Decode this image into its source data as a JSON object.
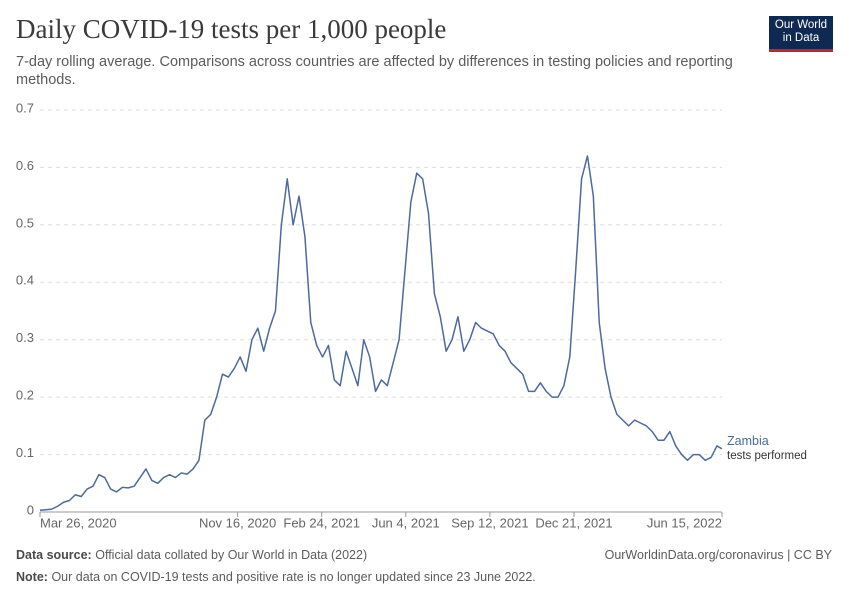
{
  "chart_data": {
    "type": "line",
    "title": "Daily COVID-19 tests per 1,000 people",
    "subtitle": "7-day rolling average. Comparisons across countries are affected by differences in testing policies and reporting methods.",
    "logo": "Our World in Data",
    "source_label": "Data source:",
    "source": "Official data collated by Our World in Data (2022)",
    "credit": "OurWorldinData.org/coronavirus | CC BY",
    "note_label": "Note:",
    "note": "Our data on COVID-19 tests and positive rate is no longer updated since 23 June 2022.",
    "grid": true,
    "xlim": [
      "2020-03-26",
      "2022-06-15"
    ],
    "xticks": [
      {
        "value": "2020-03-26",
        "label": "Mar 26, 2020"
      },
      {
        "value": "2020-11-16",
        "label": "Nov 16, 2020"
      },
      {
        "value": "2021-02-24",
        "label": "Feb 24, 2021"
      },
      {
        "value": "2021-06-04",
        "label": "Jun 4, 2021"
      },
      {
        "value": "2021-09-12",
        "label": "Sep 12, 2021"
      },
      {
        "value": "2021-12-21",
        "label": "Dec 21, 2021"
      },
      {
        "value": "2022-06-15",
        "label": "Jun 15, 2022"
      }
    ],
    "ylim": [
      0,
      0.7
    ],
    "yticks": [
      0,
      0.1,
      0.2,
      0.3,
      0.4,
      0.5,
      0.6,
      0.7
    ],
    "x": [
      "2020-03-26",
      "2020-04-02",
      "2020-04-09",
      "2020-04-16",
      "2020-04-23",
      "2020-04-30",
      "2020-05-07",
      "2020-05-14",
      "2020-05-21",
      "2020-05-28",
      "2020-06-04",
      "2020-06-11",
      "2020-06-18",
      "2020-06-25",
      "2020-07-02",
      "2020-07-09",
      "2020-07-16",
      "2020-07-23",
      "2020-07-30",
      "2020-08-06",
      "2020-08-13",
      "2020-08-20",
      "2020-08-27",
      "2020-09-03",
      "2020-09-10",
      "2020-09-17",
      "2020-09-24",
      "2020-10-01",
      "2020-10-08",
      "2020-10-15",
      "2020-10-22",
      "2020-10-29",
      "2020-11-05",
      "2020-11-12",
      "2020-11-19",
      "2020-11-26",
      "2020-12-03",
      "2020-12-10",
      "2020-12-17",
      "2020-12-24",
      "2020-12-31",
      "2021-01-07",
      "2021-01-14",
      "2021-01-21",
      "2021-01-28",
      "2021-02-04",
      "2021-02-11",
      "2021-02-18",
      "2021-02-25",
      "2021-03-04",
      "2021-03-11",
      "2021-03-18",
      "2021-03-25",
      "2021-04-01",
      "2021-04-08",
      "2021-04-15",
      "2021-04-22",
      "2021-04-29",
      "2021-05-06",
      "2021-05-13",
      "2021-05-20",
      "2021-05-27",
      "2021-06-03",
      "2021-06-10",
      "2021-06-17",
      "2021-06-24",
      "2021-07-01",
      "2021-07-08",
      "2021-07-15",
      "2021-07-22",
      "2021-07-29",
      "2021-08-05",
      "2021-08-12",
      "2021-08-19",
      "2021-08-26",
      "2021-09-02",
      "2021-09-09",
      "2021-09-16",
      "2021-09-23",
      "2021-09-30",
      "2021-10-07",
      "2021-10-14",
      "2021-10-21",
      "2021-10-28",
      "2021-11-04",
      "2021-11-11",
      "2021-11-18",
      "2021-11-25",
      "2021-12-02",
      "2021-12-09",
      "2021-12-16",
      "2021-12-23",
      "2021-12-30",
      "2022-01-06",
      "2022-01-13",
      "2022-01-20",
      "2022-01-27",
      "2022-02-03",
      "2022-02-10",
      "2022-02-17",
      "2022-02-24",
      "2022-03-03",
      "2022-03-10",
      "2022-03-17",
      "2022-03-24",
      "2022-03-31",
      "2022-04-07",
      "2022-04-14",
      "2022-04-21",
      "2022-04-28",
      "2022-05-05",
      "2022-05-12",
      "2022-05-19",
      "2022-05-26",
      "2022-06-02",
      "2022-06-09",
      "2022-06-15"
    ],
    "series": [
      {
        "name": "Zambia",
        "annotation": "tests performed",
        "color": "#4c6a9c",
        "values": [
          0.003,
          0.004,
          0.005,
          0.01,
          0.017,
          0.02,
          0.03,
          0.027,
          0.04,
          0.045,
          0.065,
          0.06,
          0.04,
          0.035,
          0.043,
          0.042,
          0.045,
          0.06,
          0.075,
          0.055,
          0.05,
          0.06,
          0.065,
          0.06,
          0.068,
          0.066,
          0.075,
          0.09,
          0.16,
          0.17,
          0.2,
          0.24,
          0.235,
          0.25,
          0.27,
          0.245,
          0.3,
          0.32,
          0.28,
          0.32,
          0.35,
          0.5,
          0.58,
          0.5,
          0.55,
          0.48,
          0.33,
          0.29,
          0.27,
          0.29,
          0.23,
          0.22,
          0.28,
          0.25,
          0.22,
          0.3,
          0.27,
          0.21,
          0.23,
          0.22,
          0.26,
          0.3,
          0.42,
          0.54,
          0.59,
          0.58,
          0.52,
          0.38,
          0.34,
          0.28,
          0.3,
          0.34,
          0.28,
          0.3,
          0.33,
          0.32,
          0.315,
          0.31,
          0.29,
          0.28,
          0.26,
          0.25,
          0.24,
          0.21,
          0.21,
          0.225,
          0.21,
          0.2,
          0.2,
          0.22,
          0.27,
          0.42,
          0.58,
          0.62,
          0.55,
          0.33,
          0.25,
          0.2,
          0.17,
          0.16,
          0.15,
          0.16,
          0.155,
          0.15,
          0.14,
          0.125,
          0.125,
          0.14,
          0.115,
          0.1,
          0.09,
          0.1,
          0.1,
          0.09,
          0.095,
          0.115,
          0.11
        ]
      }
    ]
  }
}
